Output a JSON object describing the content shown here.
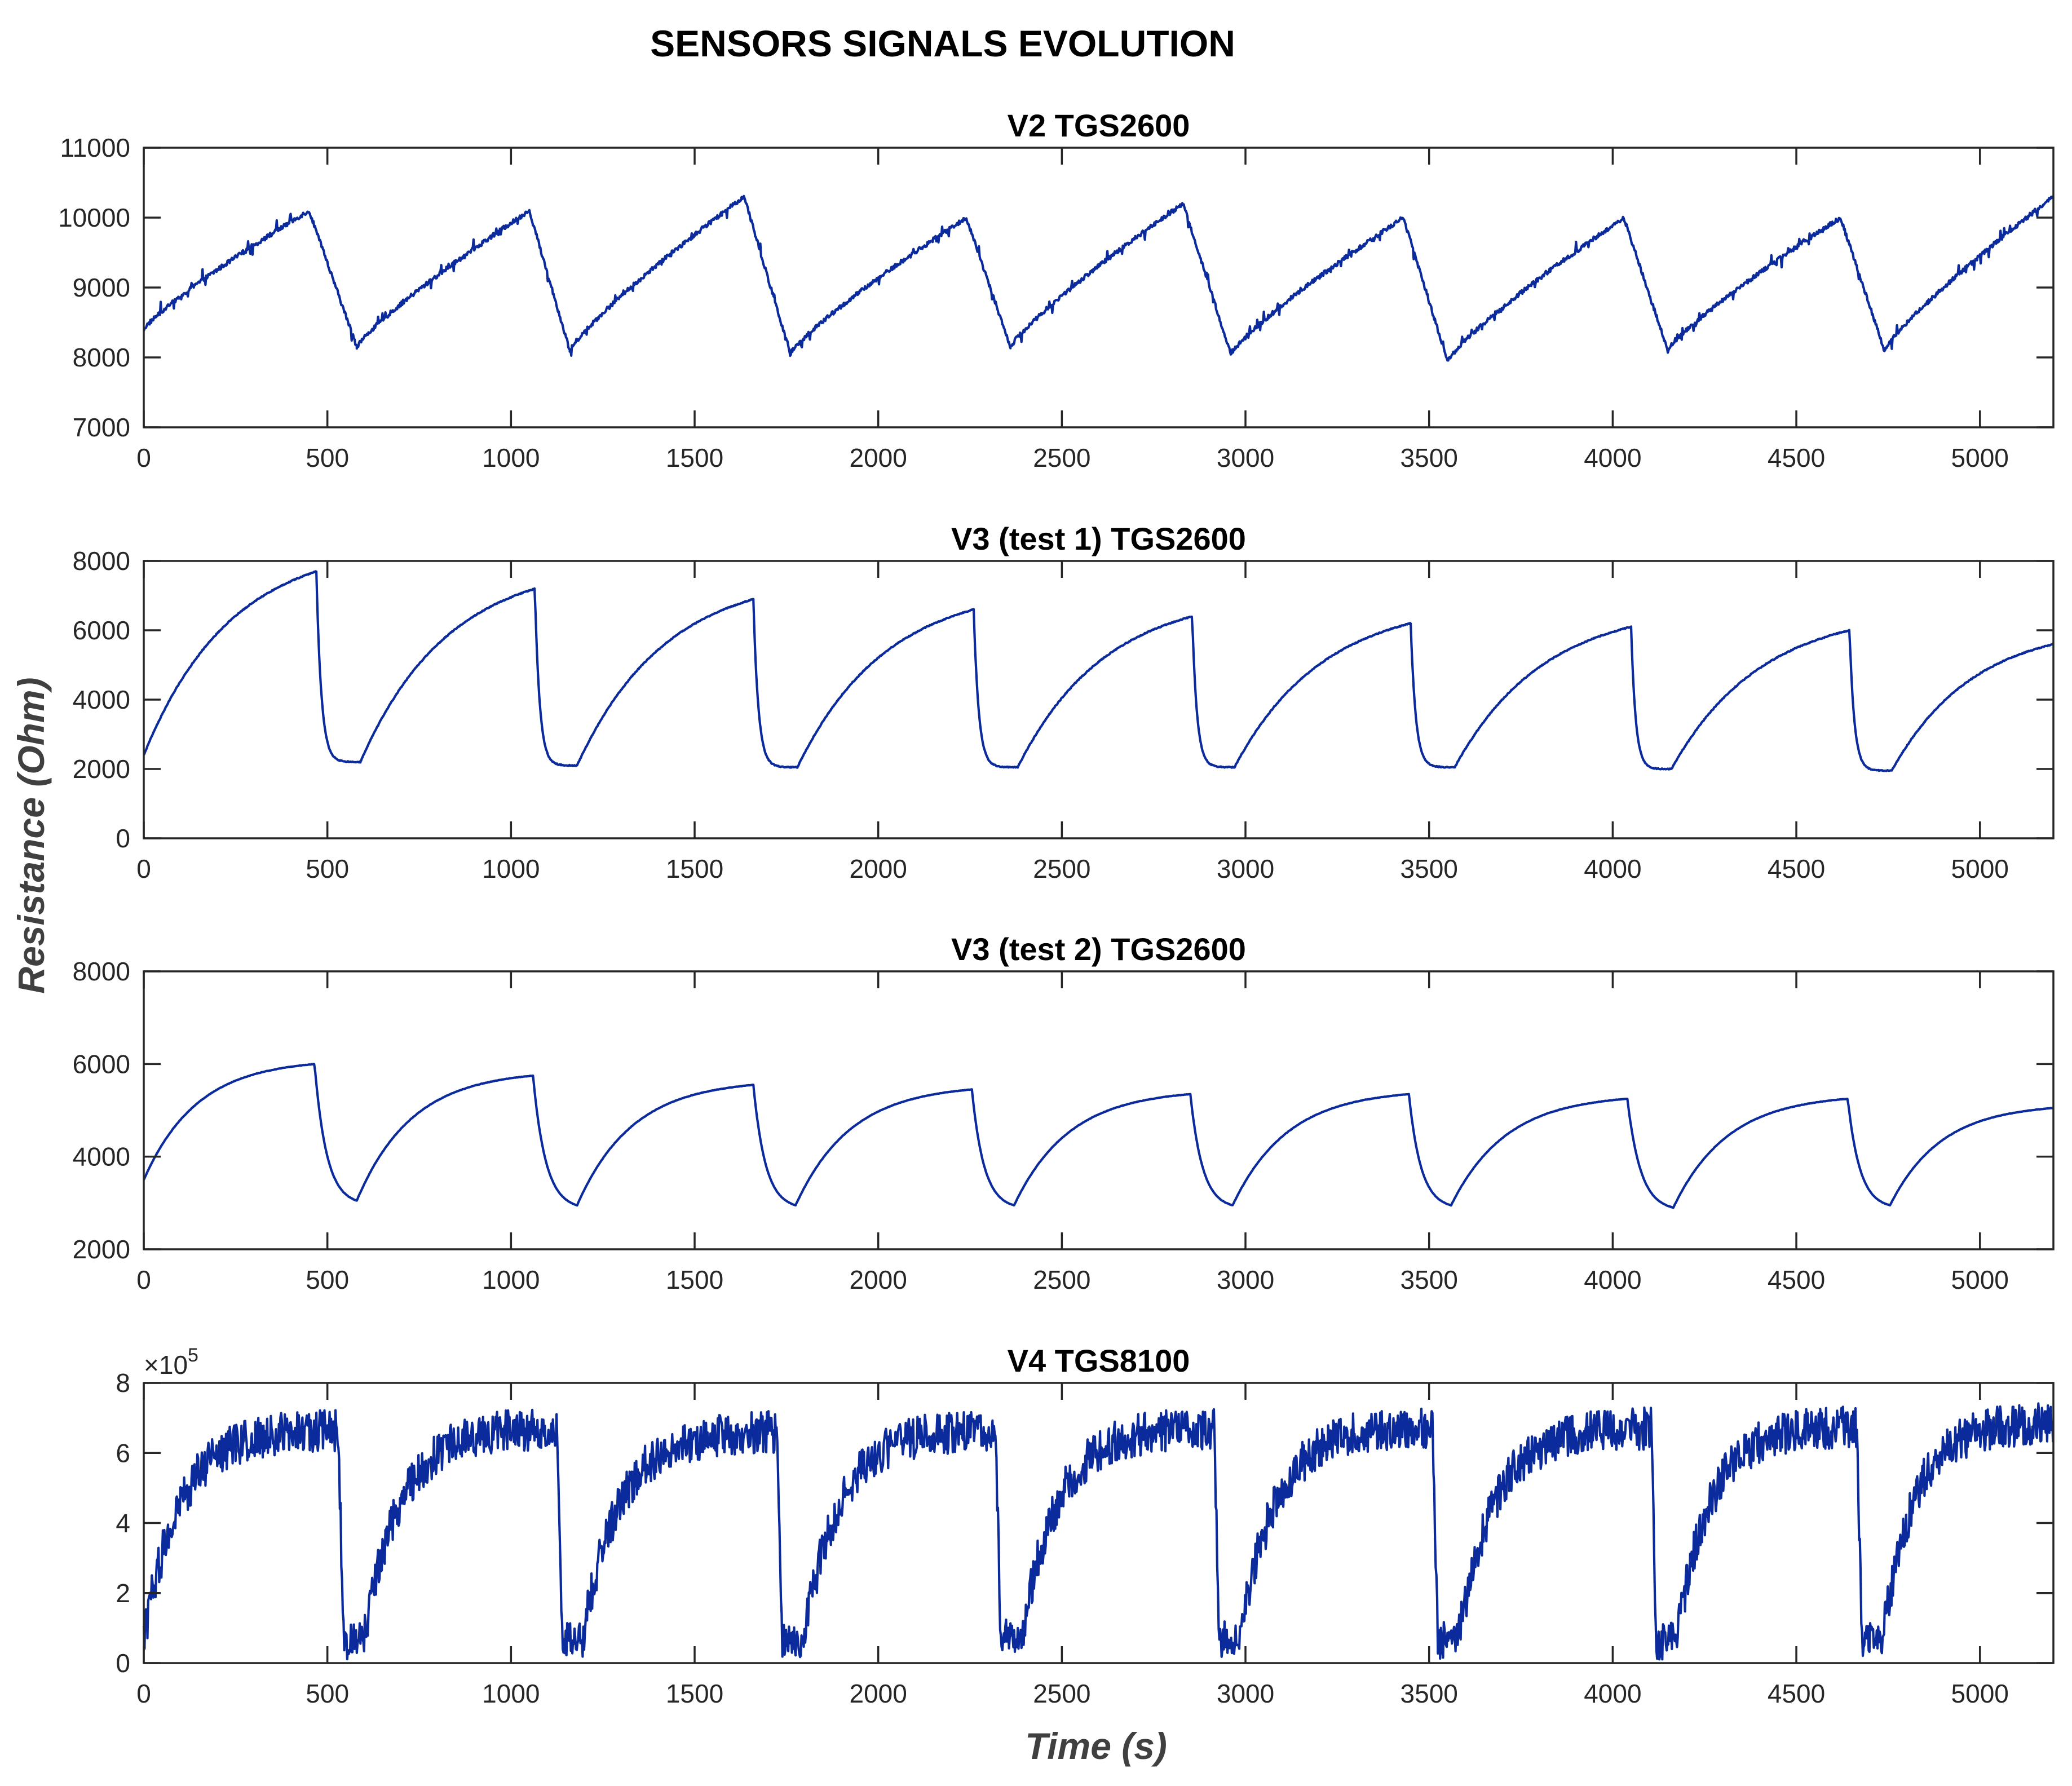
{
  "chart_data": {
    "title": "SENSORS SIGNALS EVOLUTION",
    "type": "line",
    "xlabel": "Time (s)",
    "ylabel": "Resistance (Ohm)",
    "line_color": "#0b2a9c",
    "panels": [
      {
        "title": "V2   TGS2600",
        "xlim": [
          0,
          5200
        ],
        "ylim": [
          7000,
          11000
        ],
        "yticks": [
          "7000",
          "8000",
          "9000",
          "10000",
          "11000"
        ],
        "xticks": [
          "0",
          "500",
          "1000",
          "1500",
          "2000",
          "2500",
          "3000",
          "3500",
          "4000",
          "4500",
          "5000"
        ],
        "y_exponent": "",
        "cycles": [
          {
            "t0": 0,
            "peak_t": 450,
            "end_t": 580,
            "start": 8400,
            "peak": 10100,
            "low": 8150
          },
          {
            "t0": 580,
            "peak_t": 1050,
            "end_t": 1160,
            "start": 8150,
            "peak": 10100,
            "low": 8100
          },
          {
            "t0": 1160,
            "peak_t": 1635,
            "end_t": 1760,
            "start": 8100,
            "peak": 10300,
            "low": 8050
          },
          {
            "t0": 1760,
            "peak_t": 2240,
            "end_t": 2360,
            "start": 8050,
            "peak": 10000,
            "low": 8150
          },
          {
            "t0": 2360,
            "peak_t": 2830,
            "end_t": 2960,
            "start": 8150,
            "peak": 10200,
            "low": 8050
          },
          {
            "t0": 2960,
            "peak_t": 3430,
            "end_t": 3550,
            "start": 8050,
            "peak": 10000,
            "low": 7950
          },
          {
            "t0": 3550,
            "peak_t": 4030,
            "end_t": 4150,
            "start": 7950,
            "peak": 10000,
            "low": 8100
          },
          {
            "t0": 4150,
            "peak_t": 4620,
            "end_t": 4740,
            "start": 8100,
            "peak": 10000,
            "low": 8100
          },
          {
            "t0": 4740,
            "peak_t": 5200,
            "end_t": 5200,
            "start": 8100,
            "peak": 10300,
            "low": 10300
          }
        ]
      },
      {
        "title": "V3 (test 1) TGS2600",
        "xlim": [
          0,
          5200
        ],
        "ylim": [
          0,
          8000
        ],
        "yticks": [
          "0",
          "2000",
          "4000",
          "6000",
          "8000"
        ],
        "xticks": [
          "0",
          "500",
          "1000",
          "1500",
          "2000",
          "2500",
          "3000",
          "3500",
          "4000",
          "4500",
          "5000"
        ],
        "y_exponent": "",
        "cycles": [
          {
            "t0": 0,
            "peak_t": 470,
            "end_t": 590,
            "start": 2400,
            "peak": 7700,
            "low": 2200
          },
          {
            "t0": 590,
            "peak_t": 1065,
            "end_t": 1180,
            "start": 2200,
            "peak": 7200,
            "low": 2100
          },
          {
            "t0": 1180,
            "peak_t": 1660,
            "end_t": 1780,
            "start": 2100,
            "peak": 6900,
            "low": 2050
          },
          {
            "t0": 1780,
            "peak_t": 2260,
            "end_t": 2380,
            "start": 2050,
            "peak": 6600,
            "low": 2050
          },
          {
            "t0": 2380,
            "peak_t": 2855,
            "end_t": 2970,
            "start": 2050,
            "peak": 6400,
            "low": 2050
          },
          {
            "t0": 2970,
            "peak_t": 3450,
            "end_t": 3570,
            "start": 2050,
            "peak": 6200,
            "low": 2050
          },
          {
            "t0": 3570,
            "peak_t": 4050,
            "end_t": 4160,
            "start": 2050,
            "peak": 6100,
            "low": 2000
          },
          {
            "t0": 4160,
            "peak_t": 4645,
            "end_t": 4760,
            "start": 2000,
            "peak": 6000,
            "low": 1950
          },
          {
            "t0": 4760,
            "peak_t": 5200,
            "end_t": 5200,
            "start": 1950,
            "peak": 5600,
            "low": 5600
          }
        ]
      },
      {
        "title": "V3 (test 2) TGS2600",
        "xlim": [
          0,
          5200
        ],
        "ylim": [
          2000,
          8000
        ],
        "yticks": [
          "2000",
          "4000",
          "6000",
          "8000"
        ],
        "xticks": [
          "0",
          "500",
          "1000",
          "1500",
          "2000",
          "2500",
          "3000",
          "3500",
          "4000",
          "4500",
          "5000"
        ],
        "y_exponent": "",
        "cycles": [
          {
            "t0": 0,
            "peak_t": 465,
            "end_t": 580,
            "start": 3500,
            "peak": 6000,
            "low": 3050
          },
          {
            "t0": 580,
            "peak_t": 1060,
            "end_t": 1180,
            "start": 3050,
            "peak": 5750,
            "low": 2950
          },
          {
            "t0": 1180,
            "peak_t": 1660,
            "end_t": 1775,
            "start": 2950,
            "peak": 5550,
            "low": 2950
          },
          {
            "t0": 1775,
            "peak_t": 2255,
            "end_t": 2370,
            "start": 2950,
            "peak": 5450,
            "low": 2950
          },
          {
            "t0": 2370,
            "peak_t": 2850,
            "end_t": 2965,
            "start": 2950,
            "peak": 5350,
            "low": 2950
          },
          {
            "t0": 2965,
            "peak_t": 3445,
            "end_t": 3560,
            "start": 2950,
            "peak": 5350,
            "low": 2950
          },
          {
            "t0": 3560,
            "peak_t": 4040,
            "end_t": 4165,
            "start": 2950,
            "peak": 5250,
            "low": 2900
          },
          {
            "t0": 4165,
            "peak_t": 4640,
            "end_t": 4755,
            "start": 2900,
            "peak": 5250,
            "low": 2950
          },
          {
            "t0": 4755,
            "peak_t": 5200,
            "end_t": 5200,
            "start": 2950,
            "peak": 5050,
            "low": 5050
          }
        ]
      },
      {
        "title": "V4 TGS8100",
        "xlim": [
          0,
          5200
        ],
        "ylim": [
          0,
          8
        ],
        "yticks": [
          "0",
          "2",
          "4",
          "6",
          "8"
        ],
        "xticks": [
          "0",
          "500",
          "1000",
          "1500",
          "2000",
          "2500",
          "3000",
          "3500",
          "4000",
          "4500",
          "5000"
        ],
        "y_exponent": "×10",
        "y_exponent_power": "5",
        "cycles": [
          {
            "t0": 0,
            "peak_t": 530,
            "end_t": 560,
            "start": 0.7,
            "peak": 6.65,
            "low": 0.7
          },
          {
            "t0": 600,
            "peak_t": 1125,
            "end_t": 1155,
            "start": 0.7,
            "peak": 6.7,
            "low": 0.7
          },
          {
            "t0": 1195,
            "peak_t": 1725,
            "end_t": 1755,
            "start": 0.7,
            "peak": 6.6,
            "low": 0.6
          },
          {
            "t0": 1795,
            "peak_t": 2320,
            "end_t": 2350,
            "start": 0.6,
            "peak": 6.65,
            "low": 0.7
          },
          {
            "t0": 2390,
            "peak_t": 2915,
            "end_t": 2945,
            "start": 0.7,
            "peak": 6.7,
            "low": 0.7
          },
          {
            "t0": 2985,
            "peak_t": 3510,
            "end_t": 3540,
            "start": 0.7,
            "peak": 6.75,
            "low": 0.7
          },
          {
            "t0": 3580,
            "peak_t": 4105,
            "end_t": 4135,
            "start": 0.7,
            "peak": 6.7,
            "low": 0.7
          },
          {
            "t0": 4175,
            "peak_t": 4665,
            "end_t": 4695,
            "start": 0.7,
            "peak": 6.75,
            "low": 0.7
          },
          {
            "t0": 4735,
            "peak_t": 5200,
            "end_t": 5200,
            "start": 0.7,
            "peak": 6.85,
            "low": 6.85
          }
        ]
      }
    ]
  }
}
